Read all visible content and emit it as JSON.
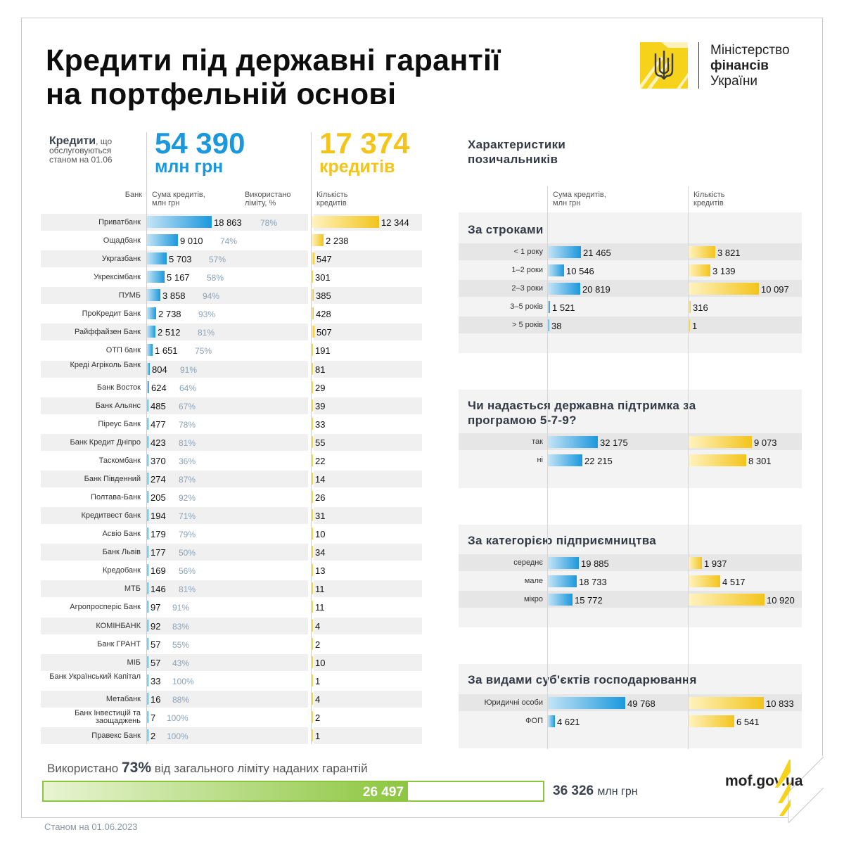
{
  "header": {
    "title_line1": "Кредити під державні гарантії",
    "title_line2": "на портфельній основі",
    "ministry_line1": "Міністерство",
    "ministry_line2": "фінансів",
    "ministry_line3": "України"
  },
  "summary": {
    "label_bold": "Кредити",
    "label_rest_1": ", що",
    "label_rest_2": "обслуговуються",
    "label_rest_3": "станом на 01.06",
    "amount_value": "54 390",
    "amount_unit": "млн грн",
    "count_value": "17 374",
    "count_unit": "кредитів"
  },
  "columns": {
    "bank": "Банк",
    "sum_1": "Сума кредитів,",
    "sum_2": "млн грн",
    "used_1": "Використано",
    "used_2": "ліміту, %",
    "cnt_1": "Кількість",
    "cnt_2": "кредитів"
  },
  "right": {
    "title_1": "Характеристики",
    "title_2": "позичальників",
    "sum_1": "Сума кредитів,",
    "sum_2": "млн грн",
    "cnt_1": "Кількість",
    "cnt_2": "кредитів"
  },
  "limit": {
    "text_before": "Використано ",
    "percent": "73%",
    "text_after": " від загального ліміту наданих гарантій",
    "used": 26497,
    "used_label": "26 497",
    "total": 36326,
    "total_label": "36 326",
    "unit": "млн грн"
  },
  "footer": {
    "site": "mof.gov.ua",
    "date": "Станом на 01.06.2023"
  },
  "colors": {
    "blue": "#1b98dc",
    "yellow": "#f3c41b",
    "green": "#8cc63f",
    "logo_yellow": "#f6d21a"
  },
  "icons": {
    "logo": "trident-emblem-icon",
    "site_mark": "yellow-stripes-icon"
  },
  "chart_data": [
    {
      "type": "bar",
      "title": "Кредити під державні гарантії на портфельній основі",
      "categories": [
        "Приватбанк",
        "Ощадбанк",
        "Укргазбанк",
        "Укрексімбанк",
        "ПУМБ",
        "ПроКредит Банк",
        "Райффайзен Банк",
        "ОТП банк",
        "Креді Агріколь Банк",
        "Банк Восток",
        "Банк Альянс",
        "Піреус Банк",
        "Банк Кредит Дніпро",
        "Таскомбанк",
        "Банк Південний",
        "Полтава-Банк",
        "Кредитвест банк",
        "Асвіо Банк",
        "Банк Львів",
        "Кредобанк",
        "МТБ",
        "Агропросперіс Банк",
        "КОМІНБАНК",
        "Банк ГРАНТ",
        "МІБ",
        "Банк Український Капітал",
        "Метабанк",
        "Банк Інвестицій та заощаджень",
        "Правекс Банк"
      ],
      "series": [
        {
          "name": "Сума кредитів, млн грн",
          "values": [
            "18 863",
            "9 010",
            "5 703",
            "5 167",
            "3 858",
            "2 738",
            "2 512",
            "1 651",
            "804",
            "624",
            "485",
            "477",
            "423",
            "370",
            "274",
            "205",
            "194",
            "179",
            "177",
            "169",
            "146",
            "97",
            "92",
            "57",
            "57",
            "33",
            "16",
            "7",
            "2"
          ]
        },
        {
          "name": "Використано ліміту, %",
          "values": [
            "78%",
            "74%",
            "57%",
            "58%",
            "94%",
            "93%",
            "81%",
            "75%",
            "91%",
            "64%",
            "67%",
            "78%",
            "81%",
            "36%",
            "87%",
            "92%",
            "71%",
            "79%",
            "50%",
            "56%",
            "81%",
            "91%",
            "83%",
            "55%",
            "43%",
            "100%",
            "88%",
            "100%",
            "100%"
          ]
        },
        {
          "name": "Кількість кредитів",
          "values": [
            "12 344",
            "2 238",
            "547",
            "301",
            "385",
            "428",
            "507",
            "191",
            "81",
            "29",
            "39",
            "33",
            "55",
            "22",
            "14",
            "26",
            "31",
            "10",
            "34",
            "13",
            "11",
            "11",
            "4",
            "2",
            "10",
            "1",
            "4",
            "2",
            "1"
          ]
        }
      ]
    },
    {
      "type": "bar",
      "title": "За строками",
      "categories": [
        "< 1 року",
        "1–2 роки",
        "2–3 роки",
        "3–5 років",
        "> 5 років"
      ],
      "series": [
        {
          "name": "Сума кредитів, млн грн",
          "values": [
            "21 465",
            "10 546",
            "20 819",
            "1 521",
            "38"
          ]
        },
        {
          "name": "Кількість кредитів",
          "values": [
            "3 821",
            "3 139",
            "10 097",
            "316",
            "1"
          ]
        }
      ]
    },
    {
      "type": "bar",
      "title": "Чи надається державна підтримка за програмою 5-7-9?",
      "categories": [
        "так",
        "ні"
      ],
      "series": [
        {
          "name": "Сума кредитів, млн грн",
          "values": [
            "32 175",
            "22 215"
          ]
        },
        {
          "name": "Кількість кредитів",
          "values": [
            "9 073",
            "8 301"
          ]
        }
      ]
    },
    {
      "type": "bar",
      "title": "За категорією підприємництва",
      "categories": [
        "середнє",
        "мале",
        "мікро"
      ],
      "series": [
        {
          "name": "Сума кредитів, млн грн",
          "values": [
            "19 885",
            "18 733",
            "15 772"
          ]
        },
        {
          "name": "Кількість кредитів",
          "values": [
            "1 937",
            "4 517",
            "10 920"
          ]
        }
      ]
    },
    {
      "type": "bar",
      "title": "За видами суб'єктів господарювання",
      "categories": [
        "Юридичні особи",
        "ФОП"
      ],
      "series": [
        {
          "name": "Сума кредитів, млн грн",
          "values": [
            "49 768",
            "4 621"
          ]
        },
        {
          "name": "Кількість кредитів",
          "values": [
            "10 833",
            "6 541"
          ]
        }
      ]
    }
  ]
}
